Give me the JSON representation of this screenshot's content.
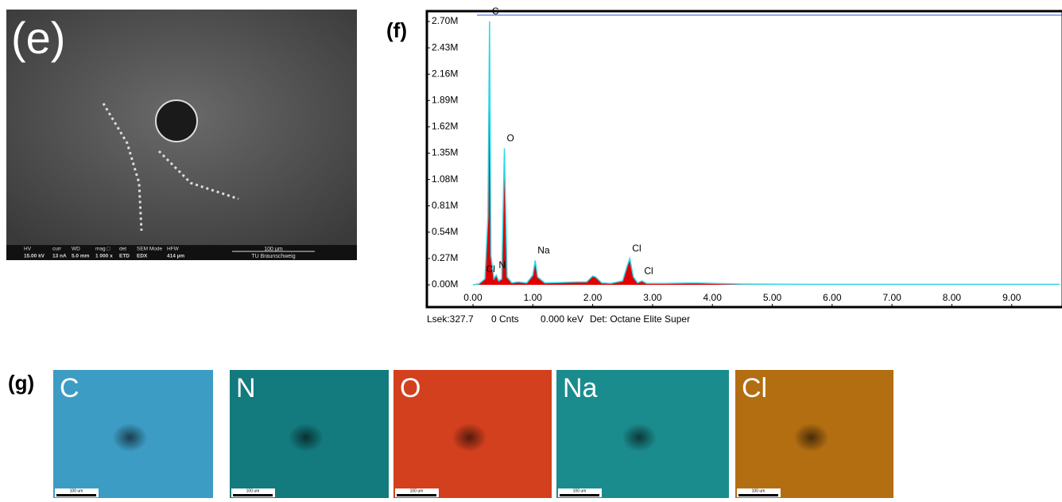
{
  "panel_e": {
    "label": "(e)",
    "info_bar": {
      "headers": [
        "HV",
        "curr",
        "WD",
        "mag □",
        "det",
        "SEM Mode",
        "HFW"
      ],
      "values": [
        "15.00 kV",
        "13 nA",
        "5.0 mm",
        "1 000 x",
        "ETD",
        "EDX",
        "414 µm"
      ],
      "scale_bar": "100 µm",
      "institution": "TU Braunschweig"
    }
  },
  "panel_f": {
    "label": "(f)",
    "footer": [
      "Lsek:327.7",
      "0 Cnts",
      "0.000 keV",
      "Det: Octane Elite Super"
    ]
  },
  "chart_data": {
    "type": "area",
    "x": [
      0.0,
      0.1,
      0.2,
      0.25,
      0.277,
      0.3,
      0.35,
      0.39,
      0.43,
      0.48,
      0.525,
      0.57,
      0.65,
      0.75,
      0.9,
      1.0,
      1.04,
      1.08,
      1.2,
      1.5,
      1.74,
      1.9,
      2.0,
      2.05,
      2.15,
      2.3,
      2.5,
      2.58,
      2.62,
      2.68,
      2.75,
      2.82,
      2.9,
      3.2,
      3.69,
      4.5,
      6.0,
      8.0,
      9.8
    ],
    "series": [
      {
        "color": "#e00000",
        "values": [
          0,
          10000,
          60000,
          700000,
          2700000,
          300000,
          60000,
          100000,
          40000,
          60000,
          1400000,
          80000,
          20000,
          30000,
          20000,
          100000,
          250000,
          80000,
          20000,
          25000,
          30000,
          30000,
          90000,
          80000,
          20000,
          15000,
          40000,
          200000,
          270000,
          80000,
          20000,
          40000,
          15000,
          15000,
          20000,
          8000,
          5000,
          5000,
          5000
        ]
      }
    ],
    "annotations": [
      {
        "text": "C",
        "x": 0.277,
        "y": 2700000
      },
      {
        "text": "O",
        "x": 0.525,
        "y": 1400000
      },
      {
        "text": "N",
        "x": 0.39,
        "y": 100000
      },
      {
        "text": "Cl",
        "x": 0.18,
        "y": 60000
      },
      {
        "text": "Na",
        "x": 1.04,
        "y": 250000
      },
      {
        "text": "Cl",
        "x": 2.62,
        "y": 270000
      },
      {
        "text": "Cl",
        "x": 2.82,
        "y": 40000
      }
    ],
    "xlim": [
      -0.77,
      9.84
    ],
    "ylim": [
      -228000,
      2806000
    ],
    "xticks": [
      {
        "value": 0,
        "label": "0.00"
      },
      {
        "value": 1,
        "label": "1.00"
      },
      {
        "value": 2,
        "label": "2.00"
      },
      {
        "value": 3,
        "label": "3.00"
      },
      {
        "value": 4,
        "label": "4.00"
      },
      {
        "value": 5,
        "label": "5.00"
      },
      {
        "value": 6,
        "label": "6.00"
      },
      {
        "value": 7,
        "label": "7.00"
      },
      {
        "value": 8,
        "label": "8.00"
      },
      {
        "value": 9,
        "label": "9.00"
      }
    ],
    "yticks": [
      {
        "value": 0,
        "label": "0.00M"
      },
      {
        "value": 270000,
        "label": "0.27M"
      },
      {
        "value": 540000,
        "label": "0.54M"
      },
      {
        "value": 810000,
        "label": "0.81M"
      },
      {
        "value": 1080000,
        "label": "1.08M"
      },
      {
        "value": 1350000,
        "label": "1.35M"
      },
      {
        "value": 1620000,
        "label": "1.62M"
      },
      {
        "value": 1890000,
        "label": "1.89M"
      },
      {
        "value": 2160000,
        "label": "2.16M"
      },
      {
        "value": 2430000,
        "label": "2.43M"
      },
      {
        "value": 2700000,
        "label": "2.70M"
      }
    ]
  },
  "panel_g": {
    "label": "(g)",
    "maps": [
      {
        "element": "C",
        "color": "#3d9cc4"
      },
      {
        "element": "N",
        "color": "#137a7e"
      },
      {
        "element": "O",
        "color": "#d2401e"
      },
      {
        "element": "Na",
        "color": "#1b8c8e"
      },
      {
        "element": "Cl",
        "color": "#b36e12"
      }
    ],
    "scale_bar": "100 um"
  }
}
